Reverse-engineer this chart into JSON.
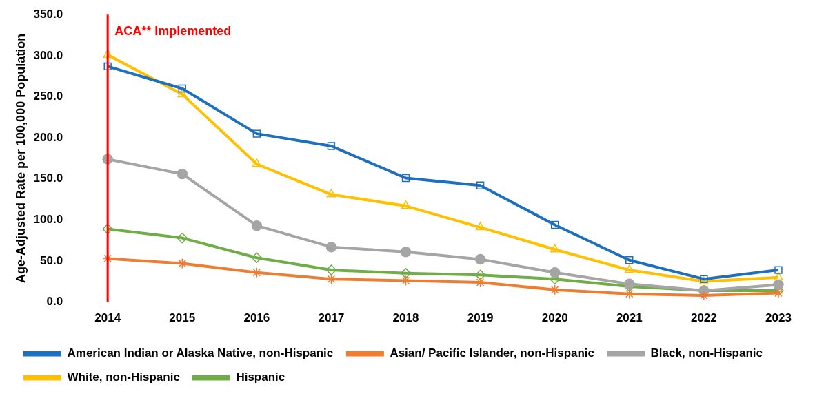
{
  "chart_data": {
    "type": "line",
    "ylabel": "Age-Adjusted Rate per 100,000 Population",
    "categories": [
      "2014",
      "2015",
      "2016",
      "2017",
      "2018",
      "2019",
      "2020",
      "2021",
      "2022",
      "2023"
    ],
    "series": [
      {
        "name": "American Indian or Alaska Native, non-Hispanic",
        "color": "#1f6fbf",
        "marker": "square",
        "values": [
          287,
          260,
          205,
          190,
          151,
          142,
          94,
          51,
          28,
          39
        ]
      },
      {
        "name": "Asian/ Pacific Islander, non-Hispanic",
        "color": "#ed7d31",
        "marker": "cross",
        "values": [
          53,
          47,
          36,
          28,
          26,
          24,
          15,
          10,
          8,
          11
        ]
      },
      {
        "name": "Black, non-Hispanic",
        "color": "#a5a5a5",
        "marker": "circle",
        "values": [
          174,
          156,
          93,
          67,
          61,
          52,
          36,
          22,
          14,
          21
        ]
      },
      {
        "name": "White, non-Hispanic",
        "color": "#ffc000",
        "marker": "triangle",
        "values": [
          301,
          253,
          168,
          131,
          117,
          91,
          64,
          39,
          25,
          30
        ]
      },
      {
        "name": "Hispanic",
        "color": "#70ad47",
        "marker": "diamond",
        "values": [
          89,
          78,
          54,
          39,
          35,
          33,
          28,
          19,
          14,
          14
        ]
      }
    ],
    "ylim": [
      0,
      350
    ],
    "yticks": [
      {
        "value": 0,
        "label": "0.0"
      },
      {
        "value": 50,
        "label": "50.0"
      },
      {
        "value": 100,
        "label": "100.0"
      },
      {
        "value": 150,
        "label": "150.0"
      },
      {
        "value": 200,
        "label": "200.0"
      },
      {
        "value": 250,
        "label": "250.0"
      },
      {
        "value": 300,
        "label": "300.0"
      },
      {
        "value": 350,
        "label": "350.0"
      }
    ],
    "grid": false,
    "legend": "bottom",
    "line_style": "solid",
    "ref_lines": [
      {
        "axis": "x",
        "value": "2014",
        "label": "ACA** Implemented",
        "color": "#ff0000"
      }
    ]
  }
}
